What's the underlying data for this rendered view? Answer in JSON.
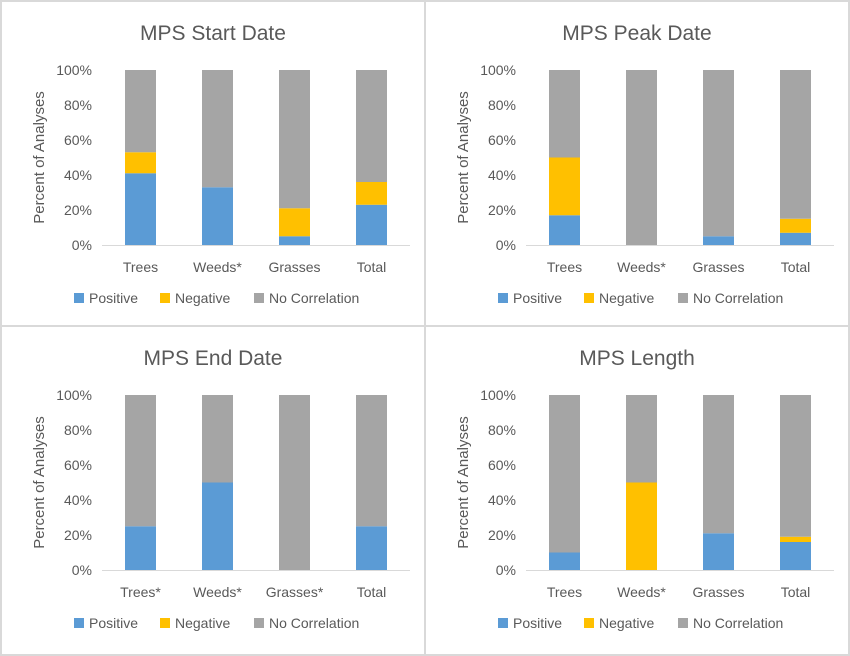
{
  "colors": {
    "positive": "#5B9BD5",
    "negative": "#FFC000",
    "no_correlation": "#A5A5A5",
    "axis": "#D9D9D9",
    "text": "#595959"
  },
  "chart_data": [
    {
      "type": "bar",
      "stacked": true,
      "percent": true,
      "title": "MPS Start Date",
      "ylabel": "Percent of Analyses",
      "yticks": [
        "0%",
        "20%",
        "40%",
        "60%",
        "80%",
        "100%"
      ],
      "ylim": [
        0,
        100
      ],
      "categories": [
        "Trees",
        "Weeds*",
        "Grasses",
        "Total"
      ],
      "series": [
        {
          "name": "Positive",
          "values": [
            41,
            33,
            5,
            23
          ]
        },
        {
          "name": "Negative",
          "values": [
            12,
            0,
            16,
            13
          ]
        },
        {
          "name": "No Correlation",
          "values": [
            47,
            67,
            79,
            64
          ]
        }
      ],
      "legend": "bottom"
    },
    {
      "type": "bar",
      "stacked": true,
      "percent": true,
      "title": "MPS Peak Date",
      "ylabel": "Percent of Analyses",
      "yticks": [
        "0%",
        "20%",
        "40%",
        "60%",
        "80%",
        "100%"
      ],
      "ylim": [
        0,
        100
      ],
      "categories": [
        "Trees",
        "Weeds*",
        "Grasses",
        "Total"
      ],
      "series": [
        {
          "name": "Positive",
          "values": [
            17,
            0,
            5,
            7
          ]
        },
        {
          "name": "Negative",
          "values": [
            33,
            0,
            0,
            8
          ]
        },
        {
          "name": "No Correlation",
          "values": [
            50,
            100,
            95,
            85
          ]
        }
      ],
      "legend": "bottom"
    },
    {
      "type": "bar",
      "stacked": true,
      "percent": true,
      "title": "MPS End Date",
      "ylabel": "Percent of Analyses",
      "yticks": [
        "0%",
        "20%",
        "40%",
        "60%",
        "80%",
        "100%"
      ],
      "ylim": [
        0,
        100
      ],
      "categories": [
        "Trees*",
        "Weeds*",
        "Grasses*",
        "Total"
      ],
      "series": [
        {
          "name": "Positive",
          "values": [
            25,
            50,
            0,
            25
          ]
        },
        {
          "name": "Negative",
          "values": [
            0,
            0,
            0,
            0
          ]
        },
        {
          "name": "No Correlation",
          "values": [
            75,
            50,
            100,
            75
          ]
        }
      ],
      "legend": "bottom"
    },
    {
      "type": "bar",
      "stacked": true,
      "percent": true,
      "title": "MPS Length",
      "ylabel": "Percent of Analyses",
      "yticks": [
        "0%",
        "20%",
        "40%",
        "60%",
        "80%",
        "100%"
      ],
      "ylim": [
        0,
        100
      ],
      "categories": [
        "Trees",
        "Weeds*",
        "Grasses",
        "Total"
      ],
      "series": [
        {
          "name": "Positive",
          "values": [
            10,
            0,
            21,
            16
          ]
        },
        {
          "name": "Negative",
          "values": [
            0,
            50,
            0,
            3
          ]
        },
        {
          "name": "No Correlation",
          "values": [
            90,
            50,
            79,
            81
          ]
        }
      ],
      "legend": "bottom"
    }
  ]
}
